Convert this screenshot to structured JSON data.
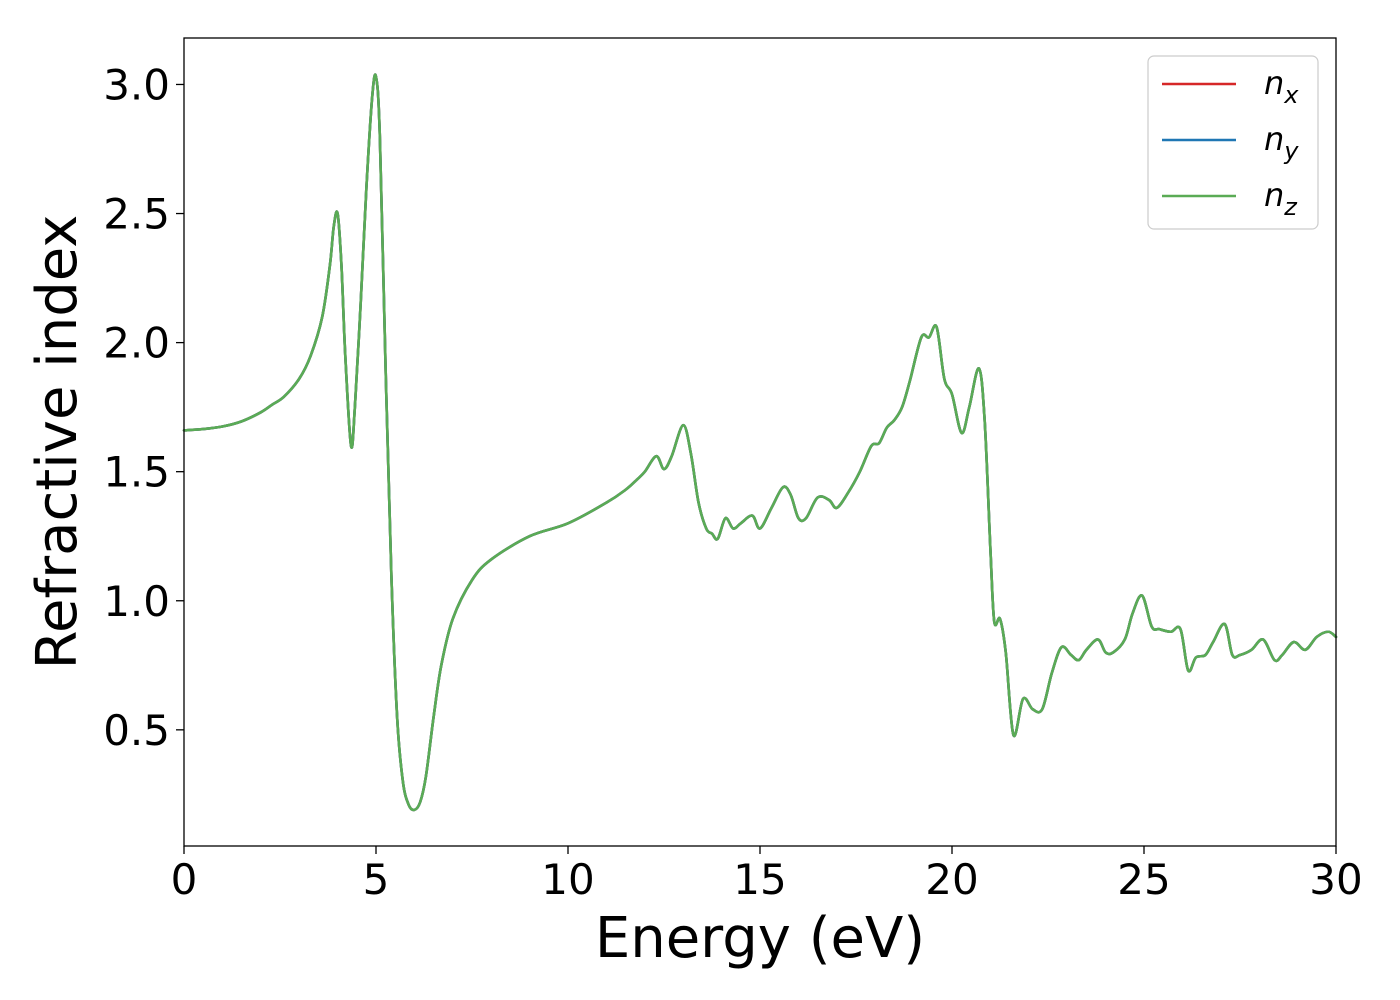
{
  "chart_data": {
    "type": "line",
    "xlabel": "Energy (eV)",
    "ylabel": "Refractive index",
    "xlim": [
      0,
      30
    ],
    "ylim": [
      0.05,
      3.18
    ],
    "x_ticks": [
      "0",
      "5",
      "10",
      "15",
      "20",
      "25",
      "30"
    ],
    "y_ticks": [
      "0.5",
      "1.0",
      "1.5",
      "2.0",
      "2.5",
      "3.0"
    ],
    "grid": false,
    "legend_position": "top-right",
    "series": [
      {
        "name": "n_x",
        "label_base": "n",
        "label_sub": "x",
        "color": "#d62728",
        "x": [
          0,
          0.5,
          1,
          1.5,
          2,
          2.3,
          2.6,
          3,
          3.3,
          3.6,
          3.8,
          3.9,
          4.0,
          4.1,
          4.2,
          4.35,
          4.45,
          4.6,
          4.75,
          4.9,
          5.0,
          5.1,
          5.25,
          5.4,
          5.55,
          5.7,
          5.85,
          6.0,
          6.15,
          6.3,
          6.5,
          6.7,
          7.0,
          7.5,
          8,
          9,
          10,
          11,
          11.5,
          11.8,
          12.0,
          12.3,
          12.5,
          12.7,
          13.0,
          13.2,
          13.4,
          13.6,
          13.75,
          13.9,
          14.1,
          14.3,
          14.5,
          14.8,
          15.0,
          15.3,
          15.6,
          15.8,
          16.0,
          16.2,
          16.5,
          16.8,
          17.0,
          17.3,
          17.6,
          17.9,
          18.1,
          18.3,
          18.5,
          18.7,
          18.9,
          19.2,
          19.4,
          19.6,
          19.8,
          20.0,
          20.25,
          20.45,
          20.7,
          20.85,
          21.0,
          21.1,
          21.25,
          21.4,
          21.6,
          21.85,
          22.1,
          22.35,
          22.6,
          22.85,
          23.1,
          23.3,
          23.5,
          23.8,
          24.0,
          24.2,
          24.5,
          24.7,
          24.95,
          25.2,
          25.4,
          25.7,
          25.95,
          26.15,
          26.35,
          26.6,
          26.8,
          27.1,
          27.3,
          27.5,
          27.8,
          28.1,
          28.4,
          28.6,
          28.9,
          29.2,
          29.5,
          29.8,
          30
        ],
        "values": [
          1.66,
          1.665,
          1.675,
          1.695,
          1.73,
          1.76,
          1.79,
          1.86,
          1.95,
          2.1,
          2.3,
          2.45,
          2.5,
          2.3,
          1.95,
          1.6,
          1.75,
          2.15,
          2.6,
          2.95,
          3.03,
          2.8,
          1.9,
          1.1,
          0.55,
          0.3,
          0.21,
          0.19,
          0.22,
          0.32,
          0.55,
          0.75,
          0.93,
          1.08,
          1.16,
          1.25,
          1.3,
          1.38,
          1.43,
          1.47,
          1.5,
          1.56,
          1.51,
          1.56,
          1.68,
          1.57,
          1.38,
          1.28,
          1.26,
          1.24,
          1.32,
          1.28,
          1.3,
          1.33,
          1.28,
          1.36,
          1.44,
          1.41,
          1.32,
          1.32,
          1.4,
          1.39,
          1.36,
          1.42,
          1.5,
          1.6,
          1.61,
          1.67,
          1.7,
          1.75,
          1.85,
          2.02,
          2.02,
          2.06,
          1.86,
          1.8,
          1.65,
          1.75,
          1.9,
          1.7,
          1.2,
          0.92,
          0.93,
          0.8,
          0.48,
          0.62,
          0.58,
          0.58,
          0.72,
          0.82,
          0.79,
          0.77,
          0.81,
          0.85,
          0.8,
          0.8,
          0.85,
          0.95,
          1.02,
          0.9,
          0.89,
          0.88,
          0.89,
          0.73,
          0.78,
          0.79,
          0.84,
          0.91,
          0.79,
          0.79,
          0.81,
          0.85,
          0.77,
          0.79,
          0.84,
          0.81,
          0.86,
          0.88,
          0.86
        ]
      },
      {
        "name": "n_y",
        "label_base": "n",
        "label_sub": "y",
        "color": "#1f77b4",
        "x": [
          0,
          0.5,
          1,
          1.5,
          2,
          2.3,
          2.6,
          3,
          3.3,
          3.6,
          3.8,
          3.9,
          4.0,
          4.1,
          4.2,
          4.35,
          4.45,
          4.6,
          4.75,
          4.9,
          5.0,
          5.1,
          5.25,
          5.4,
          5.55,
          5.7,
          5.85,
          6.0,
          6.15,
          6.3,
          6.5,
          6.7,
          7.0,
          7.5,
          8,
          9,
          10,
          11,
          11.5,
          11.8,
          12.0,
          12.3,
          12.5,
          12.7,
          13.0,
          13.2,
          13.4,
          13.6,
          13.75,
          13.9,
          14.1,
          14.3,
          14.5,
          14.8,
          15.0,
          15.3,
          15.6,
          15.8,
          16.0,
          16.2,
          16.5,
          16.8,
          17.0,
          17.3,
          17.6,
          17.9,
          18.1,
          18.3,
          18.5,
          18.7,
          18.9,
          19.2,
          19.4,
          19.6,
          19.8,
          20.0,
          20.25,
          20.45,
          20.7,
          20.85,
          21.0,
          21.1,
          21.25,
          21.4,
          21.6,
          21.85,
          22.1,
          22.35,
          22.6,
          22.85,
          23.1,
          23.3,
          23.5,
          23.8,
          24.0,
          24.2,
          24.5,
          24.7,
          24.95,
          25.2,
          25.4,
          25.7,
          25.95,
          26.15,
          26.35,
          26.6,
          26.8,
          27.1,
          27.3,
          27.5,
          27.8,
          28.1,
          28.4,
          28.6,
          28.9,
          29.2,
          29.5,
          29.8,
          30
        ],
        "values": [
          1.66,
          1.665,
          1.675,
          1.695,
          1.73,
          1.76,
          1.79,
          1.86,
          1.95,
          2.1,
          2.3,
          2.45,
          2.5,
          2.3,
          1.95,
          1.6,
          1.75,
          2.15,
          2.6,
          2.95,
          3.03,
          2.8,
          1.9,
          1.1,
          0.55,
          0.3,
          0.21,
          0.19,
          0.22,
          0.32,
          0.55,
          0.75,
          0.93,
          1.08,
          1.16,
          1.25,
          1.3,
          1.38,
          1.43,
          1.47,
          1.5,
          1.56,
          1.51,
          1.56,
          1.68,
          1.57,
          1.38,
          1.28,
          1.26,
          1.24,
          1.32,
          1.28,
          1.3,
          1.33,
          1.28,
          1.36,
          1.44,
          1.41,
          1.32,
          1.32,
          1.4,
          1.39,
          1.36,
          1.42,
          1.5,
          1.6,
          1.61,
          1.67,
          1.7,
          1.75,
          1.85,
          2.02,
          2.02,
          2.06,
          1.86,
          1.8,
          1.65,
          1.75,
          1.9,
          1.7,
          1.2,
          0.92,
          0.93,
          0.8,
          0.48,
          0.62,
          0.58,
          0.58,
          0.72,
          0.82,
          0.79,
          0.77,
          0.81,
          0.85,
          0.8,
          0.8,
          0.85,
          0.95,
          1.02,
          0.9,
          0.89,
          0.88,
          0.89,
          0.73,
          0.78,
          0.79,
          0.84,
          0.91,
          0.79,
          0.79,
          0.81,
          0.85,
          0.77,
          0.79,
          0.84,
          0.81,
          0.86,
          0.88,
          0.86
        ]
      },
      {
        "name": "n_z",
        "label_base": "n",
        "label_sub": "z",
        "color": "#5aab55",
        "x": [
          0,
          0.5,
          1,
          1.5,
          2,
          2.3,
          2.6,
          3,
          3.3,
          3.6,
          3.8,
          3.9,
          4.0,
          4.1,
          4.2,
          4.35,
          4.45,
          4.6,
          4.75,
          4.9,
          5.0,
          5.1,
          5.25,
          5.4,
          5.55,
          5.7,
          5.85,
          6.0,
          6.15,
          6.3,
          6.5,
          6.7,
          7.0,
          7.5,
          8,
          9,
          10,
          11,
          11.5,
          11.8,
          12.0,
          12.3,
          12.5,
          12.7,
          13.0,
          13.2,
          13.4,
          13.6,
          13.75,
          13.9,
          14.1,
          14.3,
          14.5,
          14.8,
          15.0,
          15.3,
          15.6,
          15.8,
          16.0,
          16.2,
          16.5,
          16.8,
          17.0,
          17.3,
          17.6,
          17.9,
          18.1,
          18.3,
          18.5,
          18.7,
          18.9,
          19.2,
          19.4,
          19.6,
          19.8,
          20.0,
          20.25,
          20.45,
          20.7,
          20.85,
          21.0,
          21.1,
          21.25,
          21.4,
          21.6,
          21.85,
          22.1,
          22.35,
          22.6,
          22.85,
          23.1,
          23.3,
          23.5,
          23.8,
          24.0,
          24.2,
          24.5,
          24.7,
          24.95,
          25.2,
          25.4,
          25.7,
          25.95,
          26.15,
          26.35,
          26.6,
          26.8,
          27.1,
          27.3,
          27.5,
          27.8,
          28.1,
          28.4,
          28.6,
          28.9,
          29.2,
          29.5,
          29.8,
          30
        ],
        "values": [
          1.66,
          1.665,
          1.675,
          1.695,
          1.73,
          1.76,
          1.79,
          1.86,
          1.95,
          2.1,
          2.3,
          2.45,
          2.5,
          2.3,
          1.95,
          1.6,
          1.75,
          2.15,
          2.6,
          2.95,
          3.03,
          2.8,
          1.9,
          1.1,
          0.55,
          0.3,
          0.21,
          0.19,
          0.22,
          0.32,
          0.55,
          0.75,
          0.93,
          1.08,
          1.16,
          1.25,
          1.3,
          1.38,
          1.43,
          1.47,
          1.5,
          1.56,
          1.51,
          1.56,
          1.68,
          1.57,
          1.38,
          1.28,
          1.26,
          1.24,
          1.32,
          1.28,
          1.3,
          1.33,
          1.28,
          1.36,
          1.44,
          1.41,
          1.32,
          1.32,
          1.4,
          1.39,
          1.36,
          1.42,
          1.5,
          1.6,
          1.61,
          1.67,
          1.7,
          1.75,
          1.85,
          2.02,
          2.02,
          2.06,
          1.86,
          1.8,
          1.65,
          1.75,
          1.9,
          1.7,
          1.2,
          0.92,
          0.93,
          0.8,
          0.48,
          0.62,
          0.58,
          0.58,
          0.72,
          0.82,
          0.79,
          0.77,
          0.81,
          0.85,
          0.8,
          0.8,
          0.85,
          0.95,
          1.02,
          0.9,
          0.89,
          0.88,
          0.89,
          0.73,
          0.78,
          0.79,
          0.84,
          0.91,
          0.79,
          0.79,
          0.81,
          0.85,
          0.77,
          0.79,
          0.84,
          0.81,
          0.86,
          0.88,
          0.86
        ]
      }
    ]
  }
}
